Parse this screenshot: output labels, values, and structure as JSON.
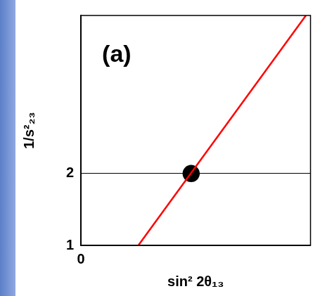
{
  "chart_data": {
    "type": "line",
    "annotations": [
      "(a)"
    ],
    "x_label": "sin² 2θ₁₃",
    "y_label": "1/s²₂₃",
    "series": [
      {
        "type": "line",
        "color": "#ff0000",
        "x": [
          0.25,
          0.98
        ],
        "values": [
          1,
          4.2
        ]
      },
      {
        "type": "scatter",
        "color": "#000000",
        "marker": "circle",
        "x": [
          0.48
        ],
        "values": [
          2
        ]
      }
    ],
    "xlim": [
      0,
      1
    ],
    "xticks": [
      0
    ],
    "ylim": [
      1,
      4.2
    ],
    "yticks": [
      1,
      2
    ],
    "grid": true
  }
}
